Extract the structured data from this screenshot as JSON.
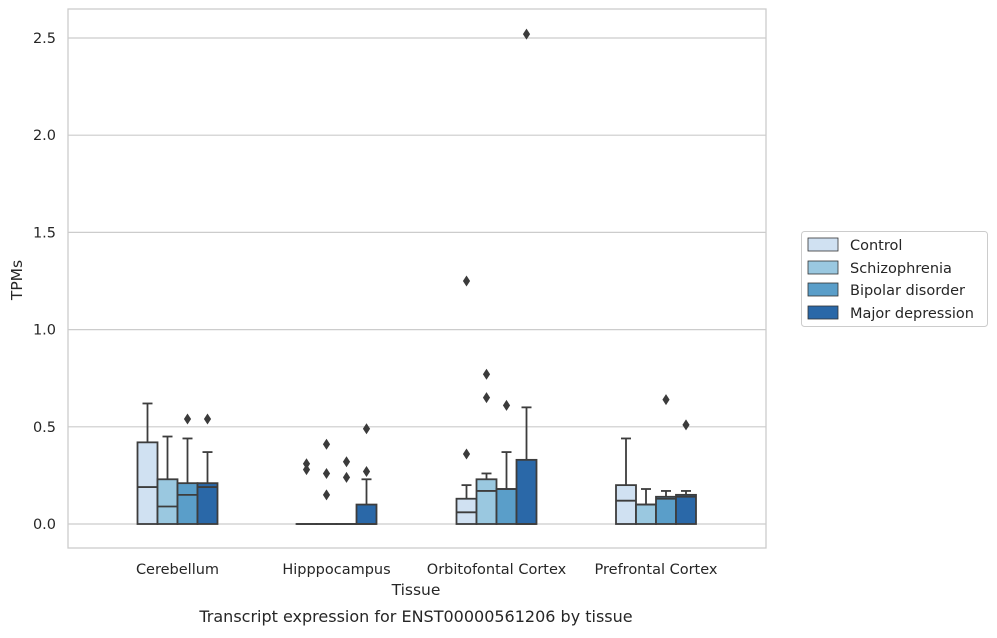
{
  "chart_data": {
    "type": "box",
    "title": "",
    "caption": "Transcript expression for ENST00000561206 by tissue",
    "xlabel": "Tissue",
    "ylabel": "TPMs",
    "ylim": [
      -0.12,
      2.65
    ],
    "yticks": [
      0.0,
      0.5,
      1.0,
      1.5,
      2.0,
      2.5
    ],
    "ytick_labels": [
      "0.0",
      "0.5",
      "1.0",
      "1.5",
      "2.0",
      "2.5"
    ],
    "grid": "horizontal",
    "legend_position": "right",
    "categories": [
      "Cerebellum",
      "Hipppocampus",
      "Orbitofontal Cortex",
      "Prefrontal Cortex"
    ],
    "series": [
      {
        "name": "Control",
        "color": "#d0e1f2",
        "boxes": [
          {
            "q1": 0.0,
            "median": 0.19,
            "q3": 0.42,
            "whisker_low": 0.0,
            "whisker_high": 0.62,
            "outliers": []
          },
          {
            "q1": 0.0,
            "median": 0.0,
            "q3": 0.0,
            "whisker_low": 0.0,
            "whisker_high": 0.0,
            "outliers": [
              0.28,
              0.31
            ]
          },
          {
            "q1": 0.0,
            "median": 0.06,
            "q3": 0.13,
            "whisker_low": 0.0,
            "whisker_high": 0.2,
            "outliers": [
              0.36,
              1.25
            ]
          },
          {
            "q1": 0.0,
            "median": 0.12,
            "q3": 0.2,
            "whisker_low": 0.0,
            "whisker_high": 0.44,
            "outliers": []
          }
        ]
      },
      {
        "name": "Schizophrenia",
        "color": "#9ac8e0",
        "boxes": [
          {
            "q1": 0.0,
            "median": 0.09,
            "q3": 0.23,
            "whisker_low": 0.0,
            "whisker_high": 0.45,
            "outliers": []
          },
          {
            "q1": 0.0,
            "median": 0.0,
            "q3": 0.0,
            "whisker_low": 0.0,
            "whisker_high": 0.0,
            "outliers": [
              0.15,
              0.26,
              0.41
            ]
          },
          {
            "q1": 0.0,
            "median": 0.17,
            "q3": 0.23,
            "whisker_low": 0.0,
            "whisker_high": 0.26,
            "outliers": [
              0.65,
              0.77
            ]
          },
          {
            "q1": 0.0,
            "median": 0.1,
            "q3": 0.1,
            "whisker_low": 0.0,
            "whisker_high": 0.18,
            "outliers": []
          }
        ]
      },
      {
        "name": "Bipolar disorder",
        "color": "#5a9ec9",
        "boxes": [
          {
            "q1": 0.0,
            "median": 0.15,
            "q3": 0.21,
            "whisker_low": 0.0,
            "whisker_high": 0.44,
            "outliers": [
              0.54
            ]
          },
          {
            "q1": 0.0,
            "median": 0.0,
            "q3": 0.0,
            "whisker_low": 0.0,
            "whisker_high": 0.0,
            "outliers": [
              0.24,
              0.32
            ]
          },
          {
            "q1": 0.0,
            "median": 0.18,
            "q3": 0.18,
            "whisker_low": 0.0,
            "whisker_high": 0.37,
            "outliers": [
              0.61
            ]
          },
          {
            "q1": 0.0,
            "median": 0.13,
            "q3": 0.14,
            "whisker_low": 0.0,
            "whisker_high": 0.17,
            "outliers": [
              0.64
            ]
          }
        ]
      },
      {
        "name": "Major depression",
        "color": "#2a68a8",
        "boxes": [
          {
            "q1": 0.0,
            "median": 0.19,
            "q3": 0.21,
            "whisker_low": 0.0,
            "whisker_high": 0.37,
            "outliers": [
              0.54
            ]
          },
          {
            "q1": 0.0,
            "median": 0.0,
            "q3": 0.1,
            "whisker_low": 0.0,
            "whisker_high": 0.23,
            "outliers": [
              0.27,
              0.49
            ]
          },
          {
            "q1": 0.0,
            "median": 0.0,
            "q3": 0.33,
            "whisker_low": 0.0,
            "whisker_high": 0.6,
            "outliers": [
              2.52
            ]
          },
          {
            "q1": 0.0,
            "median": 0.14,
            "q3": 0.15,
            "whisker_low": 0.0,
            "whisker_high": 0.17,
            "outliers": [
              0.51
            ]
          }
        ]
      }
    ]
  },
  "legend": {
    "items": [
      "Control",
      "Schizophrenia",
      "Bipolar disorder",
      "Major depression"
    ]
  }
}
